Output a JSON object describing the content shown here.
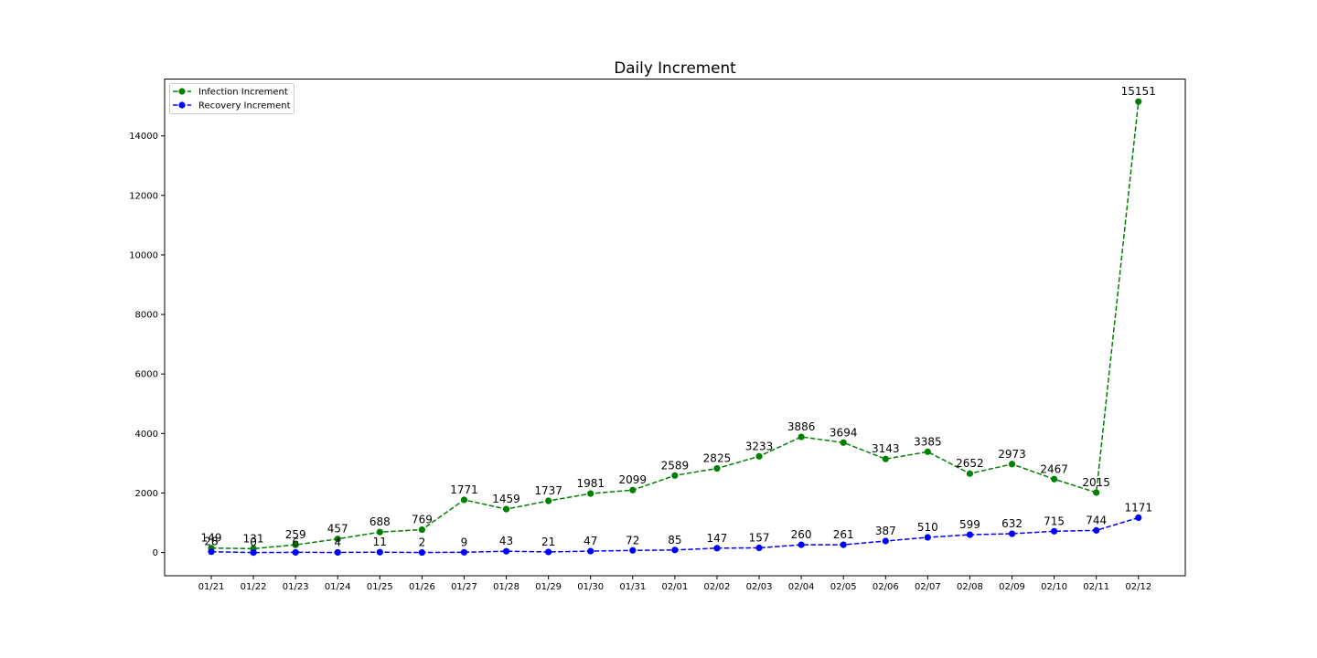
{
  "chart_data": {
    "type": "line",
    "title": "Daily Increment",
    "xlabel": "",
    "ylabel": "",
    "categories": [
      "01/21",
      "01/22",
      "01/23",
      "01/24",
      "01/25",
      "01/26",
      "01/27",
      "01/28",
      "01/29",
      "01/30",
      "01/31",
      "02/01",
      "02/02",
      "02/03",
      "02/04",
      "02/05",
      "02/06",
      "02/07",
      "02/08",
      "02/09",
      "02/10",
      "02/11",
      "02/12"
    ],
    "y_ticks": [
      0,
      2000,
      4000,
      6000,
      8000,
      10000,
      12000,
      14000
    ],
    "ylim": [
      -780,
      15910
    ],
    "grid": false,
    "legend_position": "top-left",
    "series": [
      {
        "name": "Infection Increment",
        "color": "#008000",
        "line_style": "dashed",
        "marker": "circle",
        "values": [
          149,
          131,
          259,
          457,
          688,
          769,
          1771,
          1459,
          1737,
          1981,
          2099,
          2589,
          2825,
          3233,
          3886,
          3694,
          3143,
          3385,
          2652,
          2973,
          2467,
          2015,
          15151
        ]
      },
      {
        "name": "Recovery Increment",
        "color": "#0000ff",
        "line_style": "dashed",
        "marker": "circle",
        "values": [
          28,
          0,
          6,
          4,
          11,
          2,
          9,
          43,
          21,
          47,
          72,
          85,
          147,
          157,
          260,
          261,
          387,
          510,
          599,
          632,
          715,
          744,
          1171
        ]
      }
    ]
  }
}
